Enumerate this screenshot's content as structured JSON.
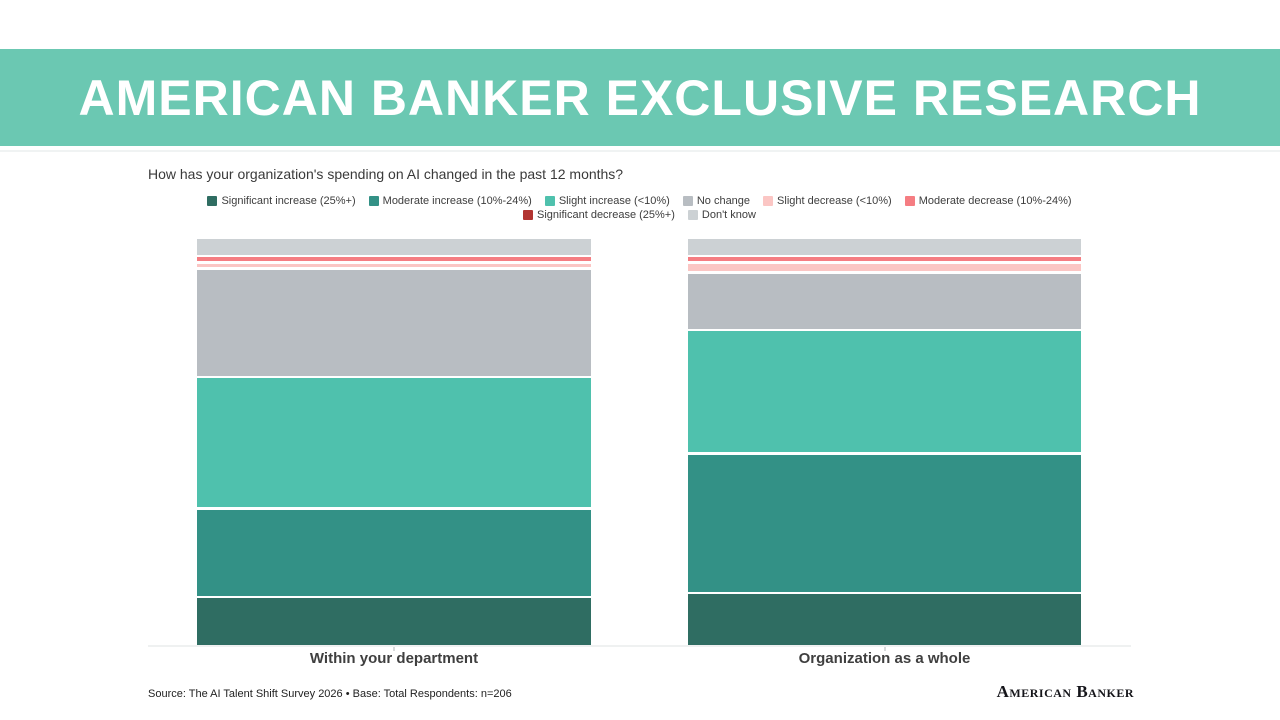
{
  "banner": {
    "title": "AMERICAN BANKER EXCLUSIVE RESEARCH",
    "background": "#6bc8b2",
    "text_color": "#ffffff"
  },
  "chart_data": {
    "type": "bar",
    "variant": "stacked-100-percent-vertical",
    "title": "How has your organization's spending on AI changed in the past 12 months?",
    "categories": [
      "Within your department",
      "Organization as a whole"
    ],
    "ylim": [
      0,
      100
    ],
    "grid": false,
    "legend_position": "top-center-two-rows",
    "legend_rows": [
      [
        0,
        1,
        2,
        3,
        4,
        5
      ],
      [
        6,
        7
      ]
    ],
    "series": [
      {
        "name": "Significant increase (25%+)",
        "color": "#2f6d62",
        "values": [
          12,
          13
        ]
      },
      {
        "name": "Moderate increase (10%-24%)",
        "color": "#339186",
        "values": [
          22,
          35
        ]
      },
      {
        "name": "Slight increase (<10%)",
        "color": "#4fc1ad",
        "values": [
          33,
          31
        ]
      },
      {
        "name": "No change",
        "color": "#b8bdc2",
        "values": [
          27,
          14
        ]
      },
      {
        "name": "Slight decrease (<10%)",
        "color": "#fbc6c4",
        "values": [
          1,
          2
        ]
      },
      {
        "name": "Moderate decrease (10%-24%)",
        "color": "#f57d82",
        "values": [
          1,
          1
        ]
      },
      {
        "name": "Significant decrease (25%+)",
        "color": "#b23431",
        "values": [
          0,
          0
        ]
      },
      {
        "name": "Don't know",
        "color": "#ccd1d4",
        "values": [
          4,
          4
        ]
      }
    ]
  },
  "footer": {
    "source": "Source: The AI Talent Shift Survey 2026 • Base: Total Respondents: n=206",
    "logo": "American Banker"
  }
}
